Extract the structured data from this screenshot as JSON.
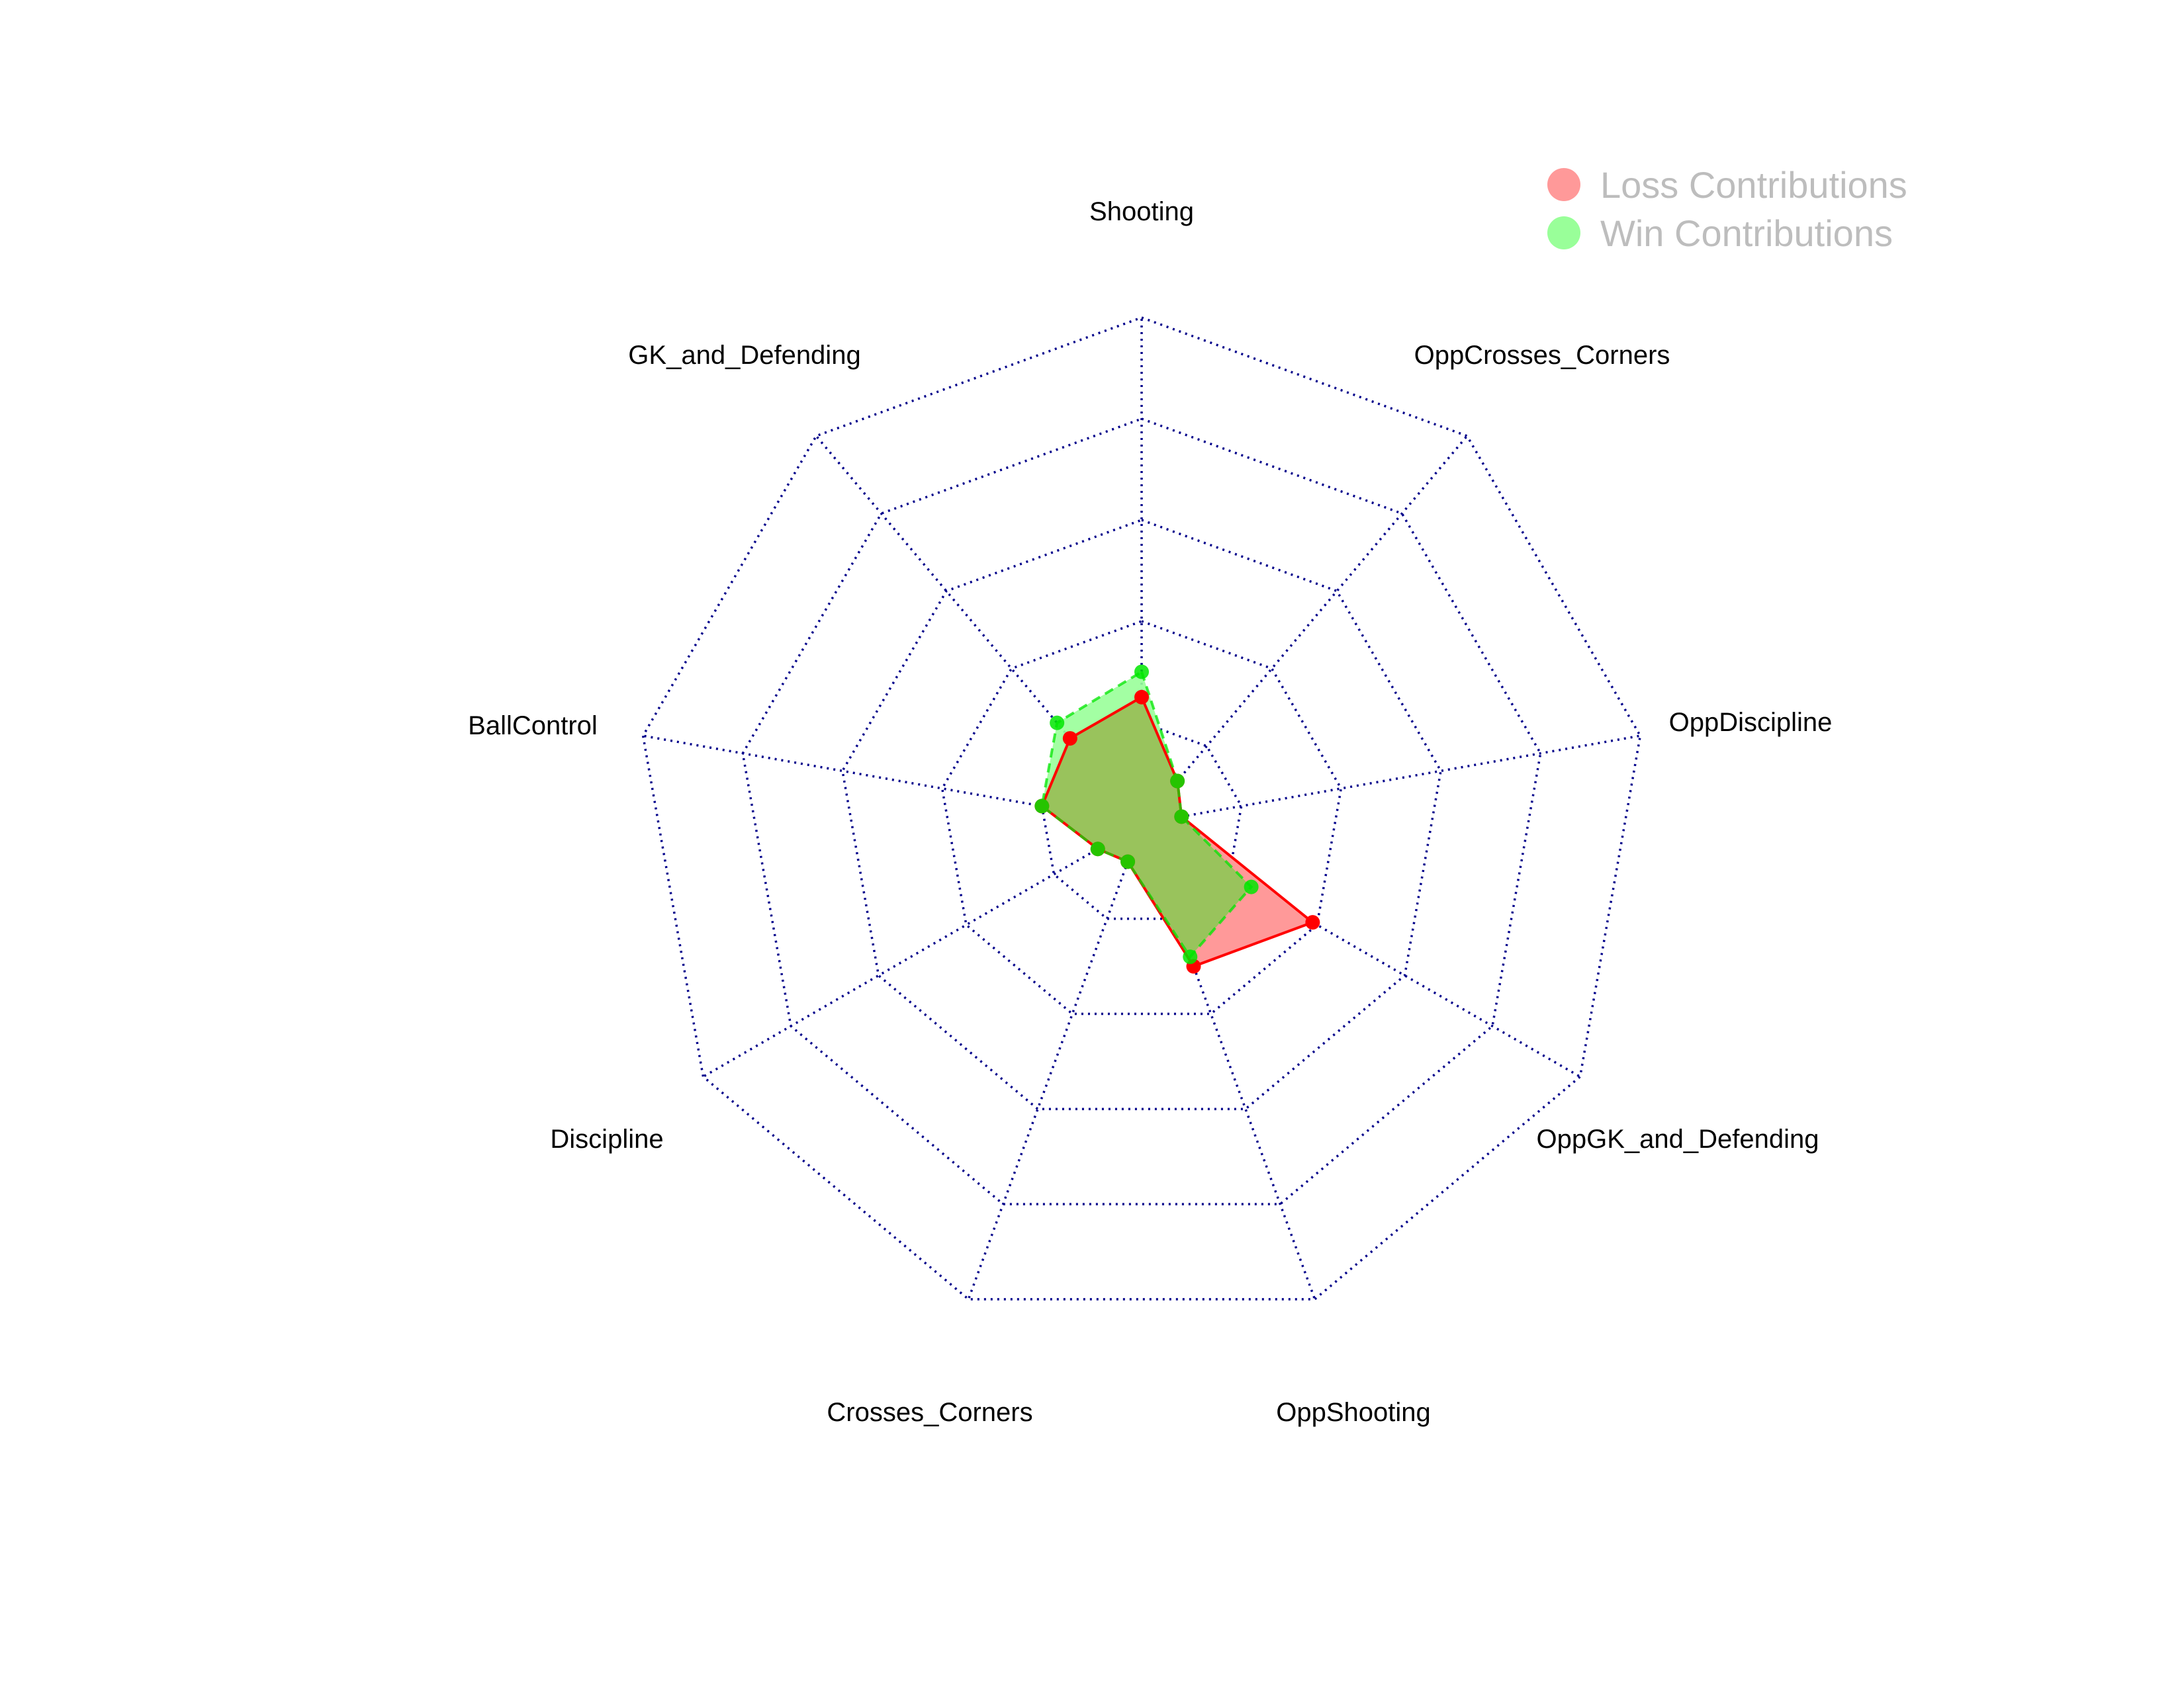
{
  "chart_data": {
    "type": "radar",
    "axes": [
      "Shooting",
      "OppCrosses_Corners",
      "OppDiscipline",
      "OppGK_and_Defending",
      "OppShooting",
      "Crosses_Corners",
      "Discipline",
      "BallControl",
      "GK_and_Defending"
    ],
    "levels": 5,
    "range": [
      0,
      1
    ],
    "grid": true,
    "legend_position": "top-right",
    "series": [
      {
        "name": "Loss Contributions",
        "color": "#ff0000",
        "fill": "#ff9999",
        "line_style": "solid",
        "values": [
          0.25,
          0.11,
          0.08,
          0.39,
          0.3,
          0.08,
          0.1,
          0.2,
          0.22
        ]
      },
      {
        "name": "Win Contributions",
        "color": "#00e600",
        "fill": "#99ff99",
        "line_style": "dashed",
        "values": [
          0.3,
          0.11,
          0.08,
          0.25,
          0.28,
          0.08,
          0.1,
          0.2,
          0.26
        ]
      }
    ],
    "overlap_color": "#99c35c"
  }
}
